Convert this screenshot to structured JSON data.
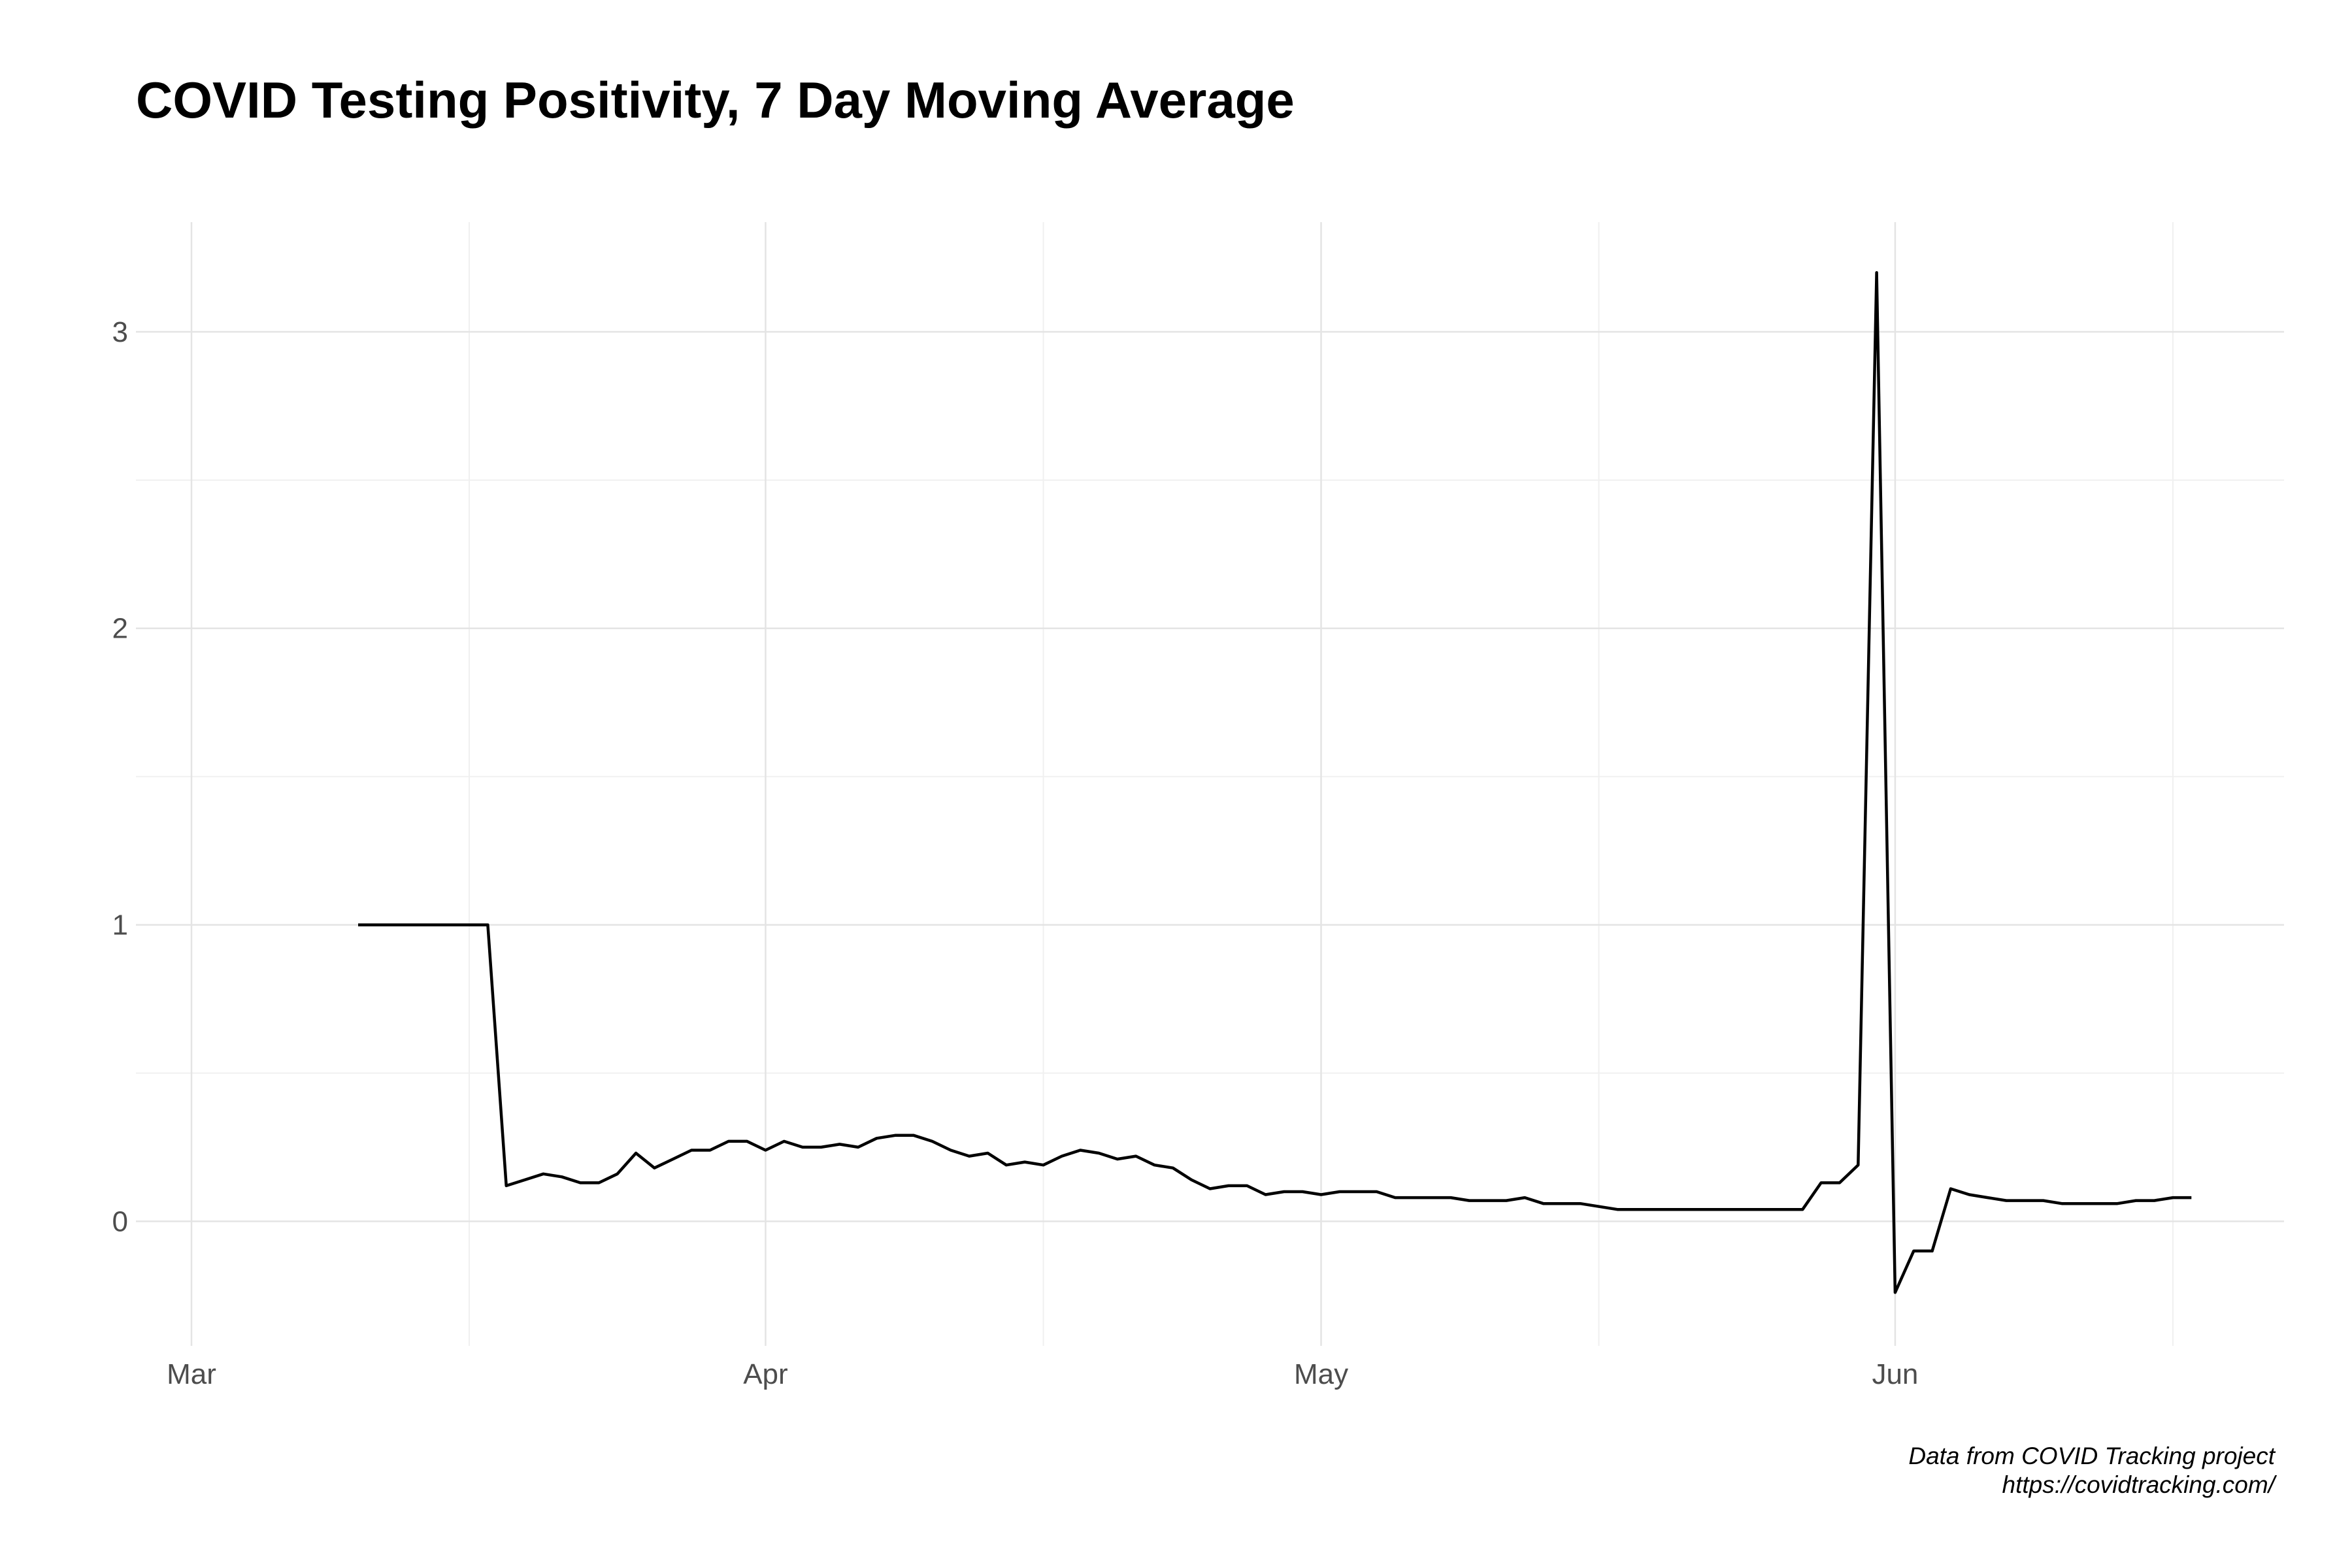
{
  "chart_data": {
    "type": "line",
    "title": "COVID Testing Positivity, 7 Day Moving Average",
    "xlabel": "",
    "ylabel": "",
    "x_ticks": [
      {
        "label": "Mar",
        "date": "2020-03-01"
      },
      {
        "label": "Apr",
        "date": "2020-04-01"
      },
      {
        "label": "May",
        "date": "2020-05-01"
      },
      {
        "label": "Jun",
        "date": "2020-06-01"
      }
    ],
    "x_minor_dates": [
      "2020-03-16",
      "2020-04-16",
      "2020-05-16",
      "2020-06-16"
    ],
    "xlim": [
      "2020-02-27",
      "2020-06-22"
    ],
    "y_ticks": [
      0,
      1,
      2,
      3
    ],
    "ylim": [
      -0.42,
      3.37
    ],
    "grid": true,
    "line_color": "#000000",
    "series": [
      {
        "x": [
          "2020-03-10",
          "2020-03-11",
          "2020-03-12",
          "2020-03-13",
          "2020-03-14",
          "2020-03-15",
          "2020-03-16",
          "2020-03-17",
          "2020-03-18",
          "2020-03-19",
          "2020-03-20",
          "2020-03-21",
          "2020-03-22",
          "2020-03-23",
          "2020-03-24",
          "2020-03-25",
          "2020-03-26",
          "2020-03-27",
          "2020-03-28",
          "2020-03-29",
          "2020-03-30",
          "2020-03-31",
          "2020-04-01",
          "2020-04-02",
          "2020-04-03",
          "2020-04-04",
          "2020-04-05",
          "2020-04-06",
          "2020-04-07",
          "2020-04-08",
          "2020-04-09",
          "2020-04-10",
          "2020-04-11",
          "2020-04-12",
          "2020-04-13",
          "2020-04-14",
          "2020-04-15",
          "2020-04-16",
          "2020-04-17",
          "2020-04-18",
          "2020-04-19",
          "2020-04-20",
          "2020-04-21",
          "2020-04-22",
          "2020-04-23",
          "2020-04-24",
          "2020-04-25",
          "2020-04-26",
          "2020-04-27",
          "2020-04-28",
          "2020-04-29",
          "2020-04-30",
          "2020-05-01",
          "2020-05-02",
          "2020-05-03",
          "2020-05-04",
          "2020-05-05",
          "2020-05-06",
          "2020-05-07",
          "2020-05-08",
          "2020-05-09",
          "2020-05-10",
          "2020-05-11",
          "2020-05-12",
          "2020-05-13",
          "2020-05-14",
          "2020-05-15",
          "2020-05-16",
          "2020-05-17",
          "2020-05-18",
          "2020-05-19",
          "2020-05-20",
          "2020-05-21",
          "2020-05-22",
          "2020-05-23",
          "2020-05-24",
          "2020-05-25",
          "2020-05-26",
          "2020-05-27",
          "2020-05-28",
          "2020-05-29",
          "2020-05-30",
          "2020-05-31",
          "2020-06-01",
          "2020-06-02",
          "2020-06-03",
          "2020-06-04",
          "2020-06-05",
          "2020-06-06",
          "2020-06-07",
          "2020-06-08",
          "2020-06-09",
          "2020-06-10",
          "2020-06-11",
          "2020-06-12",
          "2020-06-13",
          "2020-06-14",
          "2020-06-15",
          "2020-06-16",
          "2020-06-17"
        ],
        "values": [
          1,
          1,
          1,
          1,
          1,
          1,
          1,
          1,
          0.12,
          0.14,
          0.16,
          0.15,
          0.13,
          0.13,
          0.16,
          0.23,
          0.18,
          0.21,
          0.24,
          0.24,
          0.27,
          0.27,
          0.24,
          0.27,
          0.25,
          0.25,
          0.26,
          0.25,
          0.28,
          0.29,
          0.29,
          0.27,
          0.24,
          0.22,
          0.23,
          0.19,
          0.2,
          0.19,
          0.22,
          0.24,
          0.23,
          0.21,
          0.22,
          0.19,
          0.18,
          0.14,
          0.11,
          0.12,
          0.12,
          0.09,
          0.1,
          0.1,
          0.09,
          0.1,
          0.1,
          0.1,
          0.08,
          0.08,
          0.08,
          0.08,
          0.07,
          0.07,
          0.07,
          0.08,
          0.06,
          0.06,
          0.06,
          0.05,
          0.04,
          0.04,
          0.04,
          0.04,
          0.04,
          0.04,
          0.04,
          0.04,
          0.04,
          0.04,
          0.04,
          0.13,
          0.13,
          0.19,
          3.2,
          -0.24,
          -0.1,
          -0.1,
          0.11,
          0.09,
          0.08,
          0.07,
          0.07,
          0.07,
          0.06,
          0.06,
          0.06,
          0.06,
          0.07,
          0.07,
          0.08,
          0.08
        ]
      }
    ]
  },
  "caption": {
    "line1": "Data from COVID Tracking project",
    "line2": "https://covidtracking.com/"
  }
}
